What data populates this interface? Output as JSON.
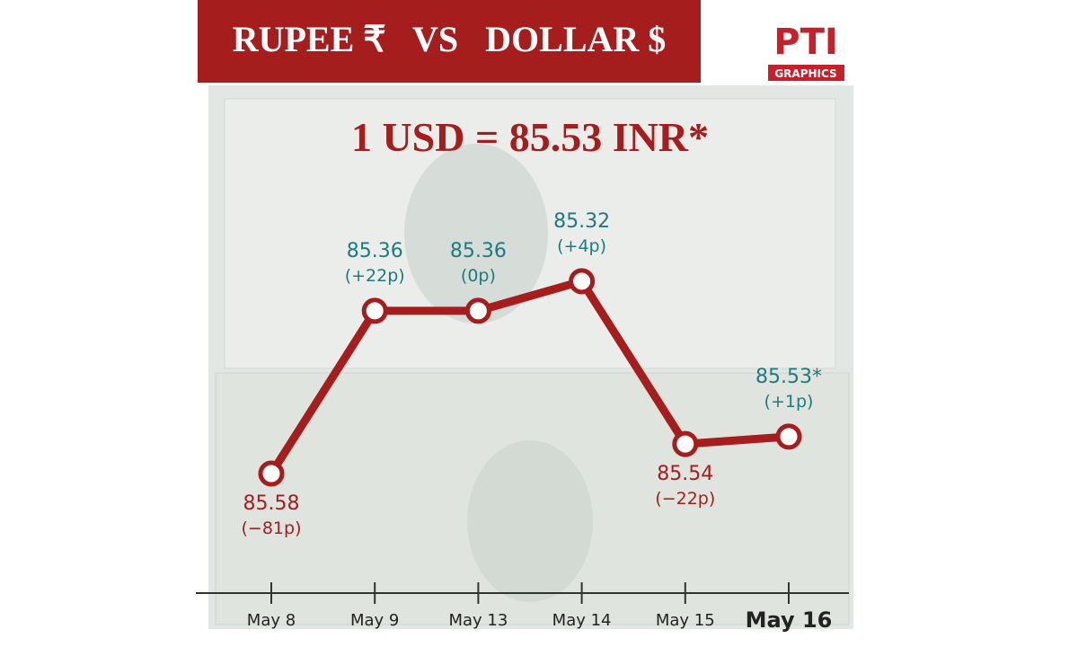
{
  "chart_data": {
    "type": "line",
    "title": "RUPEE ₹   VS   DOLLAR $",
    "subtitle": "1 USD = 85.53 INR*",
    "logo": {
      "top": "PTI",
      "bottom": "GRAPHICS"
    },
    "categories": [
      "May 8",
      "May 9",
      "May 13",
      "May 14",
      "May 15",
      "May 16"
    ],
    "series": [
      {
        "name": "USD/INR",
        "color": "#a51d1d",
        "values": [
          85.58,
          85.36,
          85.36,
          85.32,
          85.54,
          85.53
        ],
        "value_labels": [
          "85.58",
          "85.36",
          "85.36",
          "85.32",
          "85.54",
          "85.53*"
        ],
        "changes": [
          "(−81p)",
          "(+22p)",
          "(0p)",
          "(+4p)",
          "(−22p)",
          "(+1p)"
        ],
        "label_colors": [
          "#a51d1d",
          "#1f7a80",
          "#1f7a80",
          "#1f7a80",
          "#a51d1d",
          "#1f7a80"
        ]
      }
    ],
    "ylim": [
      85.62,
      85.28
    ]
  }
}
